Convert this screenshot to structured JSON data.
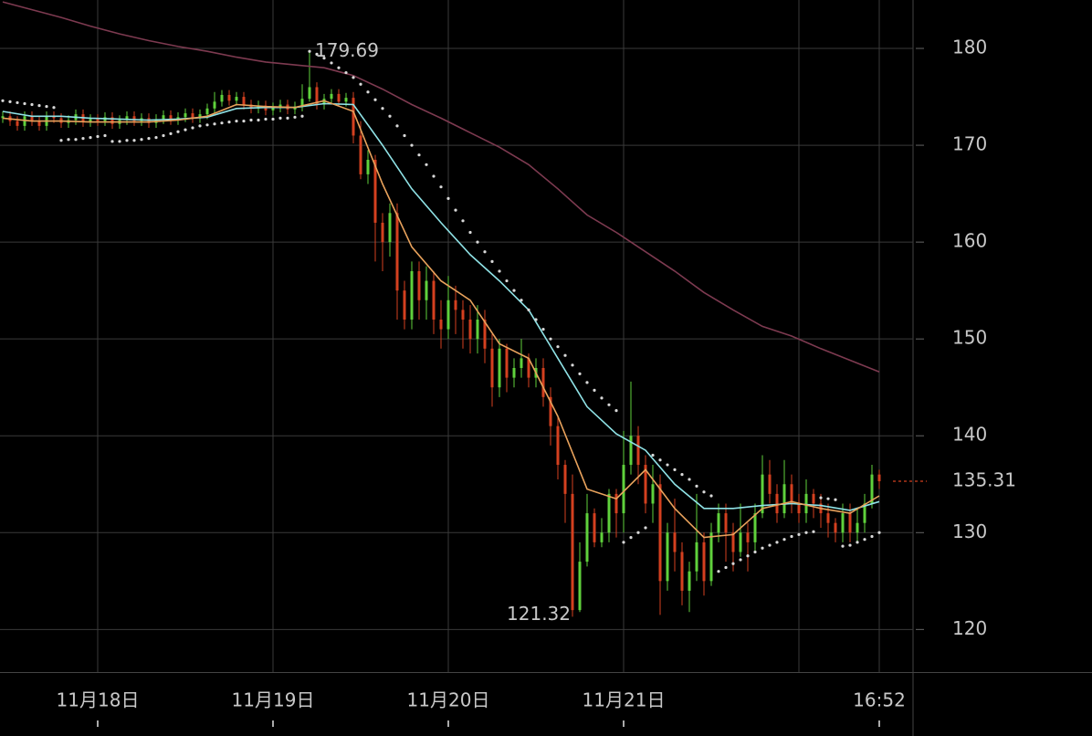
{
  "chart_data": {
    "type": "candlestick",
    "up_color": "#5fd13c",
    "down_color": "#d4401f",
    "xlim": [
      -13.375,
      111.625
    ],
    "ylim": [
      115.6,
      185
    ],
    "yticks": [
      120,
      130,
      140,
      150,
      160,
      170,
      180
    ],
    "xticks": [
      {
        "value": 0,
        "label": "11月18日"
      },
      {
        "value": 24,
        "label": "11月19日"
      },
      {
        "value": 48,
        "label": "11月20日"
      },
      {
        "value": 72,
        "label": "11月21日"
      },
      {
        "value": 96,
        "label": null
      },
      {
        "value": 107,
        "label": "16:52"
      }
    ],
    "grid": true,
    "x": [
      -13,
      -12,
      -11,
      -10,
      -9,
      -8,
      -7,
      -6,
      -5,
      -4,
      -3,
      -2,
      -1,
      0,
      1,
      2,
      3,
      4,
      5,
      6,
      7,
      8,
      9,
      10,
      11,
      12,
      13,
      14,
      15,
      16,
      17,
      18,
      19,
      20,
      21,
      22,
      23,
      24,
      25,
      26,
      27,
      28,
      29,
      30,
      31,
      32,
      33,
      34,
      35,
      36,
      37,
      38,
      39,
      40,
      41,
      42,
      43,
      44,
      45,
      46,
      47,
      48,
      49,
      50,
      51,
      52,
      53,
      54,
      55,
      56,
      57,
      58,
      59,
      60,
      61,
      62,
      63,
      64,
      65,
      66,
      67,
      68,
      69,
      70,
      71,
      72,
      73,
      74,
      75,
      76,
      77,
      78,
      79,
      80,
      81,
      82,
      83,
      84,
      85,
      86,
      87,
      88,
      89,
      90,
      91,
      92,
      93,
      94,
      95,
      96,
      97,
      98,
      99,
      100,
      101,
      102,
      103,
      104,
      105,
      106,
      107
    ],
    "open": [
      172.8,
      173,
      172.5,
      172,
      173,
      172.5,
      172,
      173,
      172.8,
      172.3,
      172.6,
      173.2,
      172.4,
      172.7,
      172.5,
      172.9,
      172.2,
      172.6,
      173,
      172.5,
      172.8,
      172.3,
      172.7,
      173.1,
      172.6,
      172.9,
      173.3,
      172.8,
      173.2,
      173.8,
      174.5,
      175.2,
      174.6,
      175,
      174.2,
      173.8,
      174.1,
      173.6,
      173.9,
      174.2,
      173.7,
      174,
      174.8,
      176,
      174.2,
      174.8,
      175.3,
      174.5,
      174.9,
      171,
      167,
      168.5,
      162,
      160,
      163,
      155,
      152,
      157,
      154,
      156,
      152,
      151,
      154,
      153,
      152,
      150,
      152,
      149,
      145,
      149,
      146,
      147,
      148,
      146,
      147,
      144,
      141,
      137,
      134,
      122,
      127,
      132,
      129,
      130,
      134,
      132,
      137,
      140,
      137,
      133,
      135,
      125,
      130,
      128,
      124,
      126,
      129,
      125,
      130,
      132,
      130,
      128,
      130,
      129,
      132,
      136,
      134,
      132,
      135,
      133,
      132,
      134,
      133,
      132,
      131,
      130,
      132,
      130,
      131,
      133,
      136
    ],
    "high": [
      173.5,
      173.5,
      173,
      173.5,
      173.5,
      173,
      173.5,
      173.5,
      173.3,
      173.1,
      173.7,
      173.7,
      173.2,
      173.2,
      173.4,
      173.4,
      173.1,
      173.5,
      173.5,
      173.3,
      173.3,
      173.2,
      173.6,
      173.6,
      173.4,
      173.8,
      173.8,
      173.7,
      174.3,
      175.5,
      175.7,
      175.7,
      175.5,
      175.5,
      174.7,
      174.6,
      174.6,
      174.4,
      174.7,
      174.7,
      174.5,
      176.3,
      179.69,
      176.5,
      175.3,
      175.8,
      175.8,
      175.4,
      175.5,
      172.5,
      169.5,
      169,
      163,
      164,
      164,
      156,
      158,
      158,
      157.5,
      157,
      154,
      156.5,
      155.5,
      154,
      153.5,
      153.5,
      153,
      150.5,
      150,
      149.5,
      148,
      150,
      148.5,
      148,
      148,
      145,
      142,
      137.5,
      136,
      129,
      134,
      132.5,
      131.5,
      134.5,
      134.5,
      140.5,
      145.6,
      141,
      138,
      137,
      136,
      131,
      133.5,
      129,
      127,
      134,
      130,
      131,
      133,
      133,
      131,
      133,
      131,
      133,
      138,
      137.5,
      135,
      137.5,
      136,
      134,
      135.5,
      134.5,
      134,
      133,
      131.5,
      133,
      133,
      132.5,
      134,
      137,
      136.5
    ],
    "low": [
      172.3,
      172,
      171.5,
      171.5,
      172,
      171.5,
      171.5,
      172.3,
      171.8,
      171.8,
      172.1,
      171.9,
      171.9,
      172,
      172,
      171.7,
      171.7,
      172.1,
      172,
      172,
      171.8,
      171.8,
      172.2,
      172.1,
      172.1,
      172.4,
      172.3,
      172.3,
      172.7,
      173.3,
      174,
      174.1,
      174.1,
      173.7,
      173.3,
      173.3,
      173.1,
      173.1,
      173.4,
      173.2,
      173.2,
      173.5,
      174.5,
      173.7,
      173.7,
      174.3,
      174,
      174,
      170.2,
      166.5,
      166,
      158,
      157,
      158.5,
      152,
      151,
      151,
      152,
      152,
      150.5,
      149,
      150,
      150.5,
      149,
      148.5,
      148.5,
      147.5,
      143,
      144,
      144.5,
      145,
      146,
      145,
      145,
      143,
      139,
      135.5,
      131,
      121.32,
      121.8,
      126.5,
      128.5,
      128.5,
      129,
      129.5,
      130,
      136,
      135,
      132,
      131,
      121.5,
      124,
      126,
      122.5,
      121.8,
      125,
      123.5,
      124.5,
      129,
      127,
      126,
      127.5,
      126,
      128,
      131.5,
      133,
      131,
      131.5,
      132,
      131,
      131,
      131.5,
      130.5,
      129.5,
      129,
      129,
      129,
      129,
      130,
      132.5,
      134.5
    ],
    "close": [
      173,
      172.5,
      172,
      173,
      172.5,
      172,
      173,
      172.8,
      172.3,
      172.6,
      173.2,
      172.4,
      172.7,
      172.5,
      172.9,
      172.2,
      172.6,
      173,
      172.5,
      172.8,
      172.3,
      172.7,
      173.1,
      172.6,
      172.9,
      173.3,
      172.8,
      173.2,
      173.8,
      174.5,
      175.2,
      174.6,
      175,
      174.2,
      173.8,
      174.1,
      173.6,
      173.9,
      174.2,
      173.7,
      174,
      174.8,
      176,
      174.2,
      174.8,
      175.3,
      174.5,
      174.9,
      171,
      167,
      168.5,
      162,
      160,
      163,
      155,
      152,
      157,
      154,
      156,
      152,
      151,
      154,
      153,
      152,
      150,
      152,
      149,
      145,
      149,
      146,
      147,
      148,
      146,
      147,
      144,
      141,
      137,
      134,
      122,
      127,
      132,
      129,
      130,
      134,
      132,
      137,
      140,
      137,
      133,
      135,
      125,
      130,
      128,
      124,
      126,
      129,
      125,
      130,
      132,
      130,
      128,
      130,
      129,
      132,
      136,
      134,
      132,
      135,
      133,
      132,
      134,
      133,
      132,
      131,
      130,
      132,
      130,
      131,
      133,
      136,
      135.31
    ],
    "sar": {
      "color": "#d8d8d8",
      "values": [
        174.6,
        174.5,
        174.4,
        174.3,
        174.2,
        174.1,
        174,
        173.9,
        170.5,
        170.6,
        170.6,
        170.7,
        170.8,
        170.9,
        171,
        170.4,
        170.4,
        170.5,
        170.5,
        170.6,
        170.7,
        170.8,
        171,
        171.2,
        171.4,
        171.6,
        171.8,
        172,
        172.1,
        172.2,
        172.3,
        172.4,
        172.5,
        172.5,
        172.6,
        172.6,
        172.7,
        172.7,
        172.8,
        172.8,
        172.9,
        173,
        179.7,
        179.4,
        179,
        178.5,
        178,
        177.5,
        177,
        176.3,
        175.5,
        174.7,
        173.8,
        173,
        172,
        171,
        170,
        169,
        168,
        166.8,
        165.7,
        164.5,
        163.3,
        162.2,
        161,
        160,
        159,
        158,
        157,
        156,
        155,
        154,
        153,
        152,
        151,
        150,
        149.2,
        148.3,
        147.3,
        146.4,
        145.5,
        144.7,
        143.9,
        143.2,
        142.6,
        129,
        129.5,
        130,
        130.5,
        138,
        137.5,
        137,
        136.5,
        136,
        135.5,
        134.8,
        134.2,
        133.8,
        126,
        126.4,
        126.8,
        127.2,
        127.6,
        128,
        128.4,
        128.7,
        129,
        129.3,
        129.6,
        129.8,
        130,
        130.1,
        133.6,
        133.5,
        133.4,
        128.6,
        128.7,
        129,
        129.3,
        129.6,
        130
      ]
    },
    "lines": [
      {
        "color": "#7d3a50",
        "x": [
          -13,
          -9,
          -5,
          -1,
          3,
          7,
          11,
          15,
          19,
          23,
          27,
          31,
          35,
          39,
          43,
          47,
          51,
          55,
          59,
          63,
          67,
          71,
          75,
          79,
          83,
          87,
          91,
          95,
          99,
          103,
          107
        ],
        "values": [
          184.8,
          184,
          183.2,
          182.3,
          181.5,
          180.8,
          180.2,
          179.7,
          179.1,
          178.6,
          178.3,
          178,
          177.2,
          175.8,
          174.2,
          172.8,
          171.3,
          169.8,
          168,
          165.5,
          162.8,
          161,
          159,
          157,
          154.8,
          153,
          151.3,
          150.3,
          149,
          147.8,
          146.6
        ]
      },
      {
        "color": "#8fe2e6",
        "x": [
          -13,
          -9,
          -5,
          -1,
          3,
          7,
          11,
          15,
          19,
          23,
          27,
          31,
          35,
          39,
          43,
          47,
          51,
          55,
          59,
          63,
          67,
          71,
          75,
          79,
          83,
          87,
          91,
          95,
          99,
          103,
          107
        ],
        "values": [
          173.5,
          173,
          173,
          172.8,
          172.7,
          172.6,
          172.7,
          172.9,
          173.8,
          173.9,
          173.9,
          174.3,
          174.2,
          170,
          165.5,
          162,
          158.7,
          156,
          153,
          148,
          143,
          140.2,
          138.5,
          135,
          132.5,
          132.5,
          132.8,
          133,
          132.8,
          132.3,
          133.2
        ]
      },
      {
        "color": "#e8a25c",
        "x": [
          -13,
          -9,
          -5,
          -1,
          3,
          7,
          11,
          15,
          19,
          23,
          27,
          31,
          35,
          39,
          43,
          47,
          51,
          55,
          59,
          63,
          67,
          71,
          75,
          79,
          83,
          87,
          91,
          95,
          99,
          103,
          107
        ],
        "values": [
          172.8,
          172.5,
          172.5,
          172.4,
          172.4,
          172.4,
          172.6,
          173,
          174.2,
          174,
          173.9,
          174.6,
          173.5,
          166,
          159.5,
          156,
          154,
          149.5,
          148,
          142,
          134.5,
          133.5,
          136.5,
          132.5,
          129.5,
          129.8,
          132.5,
          133.2,
          132.5,
          132,
          133.8
        ]
      }
    ],
    "annotations": [
      {
        "x": 29,
        "value": 179.69
      },
      {
        "x": 65,
        "value": 121.32
      }
    ],
    "last_price": {
      "value": 135.31,
      "color": "#d4401f"
    }
  }
}
